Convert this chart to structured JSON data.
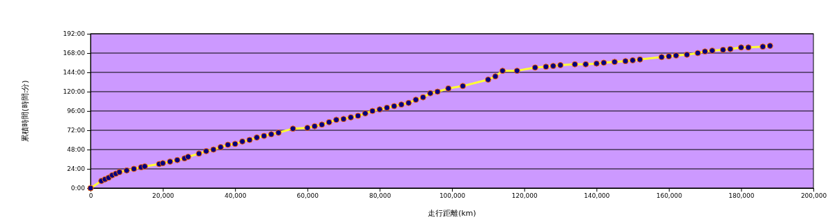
{
  "chart_data": {
    "type": "line",
    "xlabel": "走行距離(km)",
    "ylabel": "累積時間(時間:分)",
    "grid": "y",
    "marker": "circle",
    "xlim": [
      0,
      200000
    ],
    "xticks": [
      0,
      {
        "value": 20000,
        "label": "20,000"
      },
      {
        "value": 40000,
        "label": "40,000"
      },
      {
        "value": 60000,
        "label": "60,000"
      },
      {
        "value": 80000,
        "label": "80,000"
      },
      {
        "value": 100000,
        "label": "100,000"
      },
      {
        "value": 120000,
        "label": "120,000"
      },
      {
        "value": 140000,
        "label": "140,000"
      },
      {
        "value": 160000,
        "label": "160,000"
      },
      {
        "value": 180000,
        "label": "180,000"
      },
      {
        "value": 200000,
        "label": "200,000"
      }
    ],
    "ylim": [
      0,
      192
    ],
    "yticks": [
      {
        "value": 0,
        "label": "0:00"
      },
      {
        "value": 24,
        "label": "24:00"
      },
      {
        "value": 48,
        "label": "48:00"
      },
      {
        "value": 72,
        "label": "72:00"
      },
      {
        "value": 96,
        "label": "96:00"
      },
      {
        "value": 120,
        "label": "120:00"
      },
      {
        "value": 144,
        "label": "144:00"
      },
      {
        "value": 168,
        "label": "168:00"
      },
      {
        "value": 192,
        "label": "192:00"
      }
    ],
    "series": [
      {
        "color": "#000080",
        "x": [
          0,
          3000,
          4000,
          5000,
          6000,
          7000,
          8000,
          10000,
          12000,
          14000,
          15000,
          19000,
          20000,
          22000,
          24000,
          26000,
          27000,
          30000,
          32000,
          34000,
          36000,
          38000,
          40000,
          42000,
          44000,
          46000,
          48000,
          50000,
          52000,
          56000,
          60000,
          62000,
          64000,
          66000,
          68000,
          70000,
          72000,
          74000,
          76000,
          78000,
          80000,
          82000,
          84000,
          86000,
          88000,
          90000,
          92000,
          94000,
          96000,
          99000,
          103000,
          110000,
          112000,
          114000,
          118000,
          123000,
          126000,
          128000,
          130000,
          134000,
          137000,
          140000,
          142000,
          145000,
          148000,
          150000,
          152000,
          158000,
          160000,
          162000,
          165000,
          168000,
          170000,
          172000,
          175000,
          177000,
          180000,
          182000,
          186000,
          188000
        ],
        "values": [
          0,
          9,
          11,
          13,
          16,
          18,
          20,
          22,
          24,
          26,
          27,
          30,
          31,
          33,
          35,
          37,
          39,
          43,
          46,
          48,
          51,
          54,
          55,
          58,
          60,
          63,
          65,
          67,
          69,
          74,
          75,
          77,
          79,
          82,
          85,
          86,
          88,
          90,
          93,
          96,
          98,
          100,
          102,
          104,
          106,
          110,
          113,
          118,
          120,
          124,
          127,
          135,
          139,
          146,
          146,
          150,
          151,
          152,
          153,
          154,
          154,
          155,
          156,
          157,
          158,
          159,
          160,
          163,
          164,
          165,
          166,
          168,
          170,
          171,
          172,
          173,
          175,
          175,
          176,
          177
        ]
      }
    ]
  }
}
